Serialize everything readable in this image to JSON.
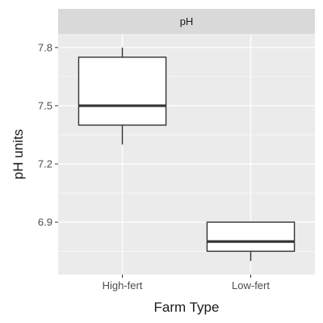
{
  "chart_data": {
    "type": "boxplot",
    "facet_title": "pH",
    "xlabel": "Farm Type",
    "ylabel": "pH units",
    "ylim": [
      6.63,
      7.87
    ],
    "y_ticks": [
      {
        "value": 6.9,
        "label": "6.9"
      },
      {
        "value": 7.2,
        "label": "7.2"
      },
      {
        "value": 7.5,
        "label": "7.5"
      },
      {
        "value": 7.8,
        "label": "7.8"
      }
    ],
    "y_minor_ticks": [
      6.75,
      7.05,
      7.35,
      7.65
    ],
    "categories": [
      "High-fert",
      "Low-fert"
    ],
    "boxes": [
      {
        "category": "High-fert",
        "whisker_low": 7.3,
        "q1": 7.4,
        "median": 7.5,
        "q3": 7.75,
        "whisker_high": 7.8
      },
      {
        "category": "Low-fert",
        "whisker_low": 6.7,
        "q1": 6.75,
        "median": 6.8,
        "q3": 6.9,
        "whisker_high": 6.9
      }
    ],
    "grid": true,
    "colors": {
      "panel_background": "#ebebeb",
      "strip_background": "#d9d9d9",
      "grid": "#ffffff",
      "box_fill": "#ffffff",
      "box_line": "#333333",
      "text": "#1a1a1a",
      "tick_text": "#4d4d4d"
    }
  }
}
